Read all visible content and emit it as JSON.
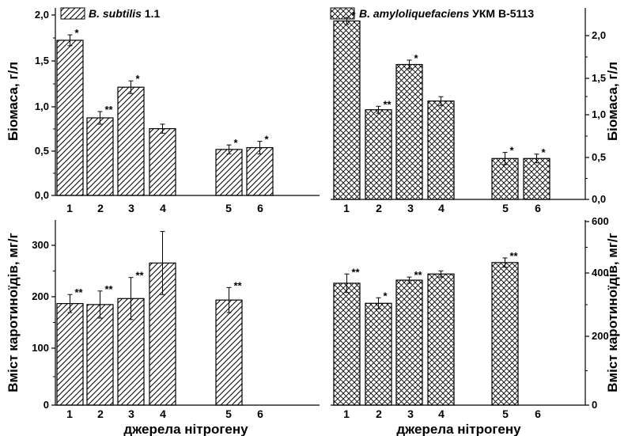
{
  "chart_data": [
    {
      "type": "bar",
      "panel": "top-left",
      "categories": [
        "1",
        "2",
        "3",
        "4",
        "5",
        "6"
      ],
      "values": [
        1.72,
        0.86,
        1.2,
        0.74,
        0.51,
        0.53
      ],
      "errors": [
        0.06,
        0.07,
        0.07,
        0.05,
        0.05,
        0.07
      ],
      "significance": [
        "*",
        "**",
        "*",
        "",
        "*",
        "*"
      ],
      "ylabel": "Біомаса, г/л",
      "ylim": [
        0,
        2.0
      ],
      "yticks": [
        "0,0",
        "0,5",
        "1,0",
        "1,5",
        "2,0"
      ],
      "yaxis_side": "left",
      "hatch": "diagonal",
      "legend": "B. subtilis 1.1"
    },
    {
      "type": "bar",
      "panel": "top-right",
      "categories": [
        "1",
        "2",
        "3",
        "4",
        "5",
        "6"
      ],
      "values": [
        2.05,
        1.03,
        1.55,
        1.13,
        0.47,
        0.47
      ],
      "errors": [
        0.04,
        0.04,
        0.05,
        0.05,
        0.07,
        0.05
      ],
      "significance": [
        "*",
        "**",
        "*",
        "",
        "*",
        "*"
      ],
      "ylabel": "Біомаса, г/л",
      "ylim": [
        0,
        2.2
      ],
      "yticks": [
        "0,0",
        "0,5",
        "1,0",
        "1,5",
        "2,0"
      ],
      "yaxis_side": "right",
      "hatch": "crosshatch",
      "legend": "B. amyloliquefaciens УКМ В-5113"
    },
    {
      "type": "bar",
      "panel": "bottom-left",
      "categories": [
        "1",
        "2",
        "3",
        "4",
        "5",
        "6"
      ],
      "values": [
        203,
        201,
        213,
        284,
        210,
        null
      ],
      "errors": [
        18,
        27,
        42,
        63,
        25,
        null
      ],
      "significance": [
        "**",
        "**",
        "**",
        "",
        "**",
        ""
      ],
      "ylabel": "Вміст каротиноїдів, мг/г",
      "xlabel": "джерела нітрогену",
      "ylim": [
        0,
        370
      ],
      "yticks": [
        "0",
        "100",
        "200",
        "300"
      ],
      "yaxis_side": "left",
      "hatch": "diagonal"
    },
    {
      "type": "bar",
      "panel": "bottom-right",
      "categories": [
        "1",
        "2",
        "3",
        "4",
        "5",
        "6"
      ],
      "values": [
        395,
        330,
        405,
        425,
        462,
        null
      ],
      "errors": [
        30,
        18,
        10,
        10,
        15,
        null
      ],
      "significance": [
        "**",
        "*",
        "**",
        "",
        "**",
        ""
      ],
      "ylabel": "Вміст каротиноїдів, мг/г",
      "xlabel": "джерела нітрогену",
      "ylim": [
        0,
        600
      ],
      "yticks": [
        "0",
        "200",
        "400",
        "600"
      ],
      "yaxis_side": "right",
      "hatch": "crosshatch"
    }
  ]
}
